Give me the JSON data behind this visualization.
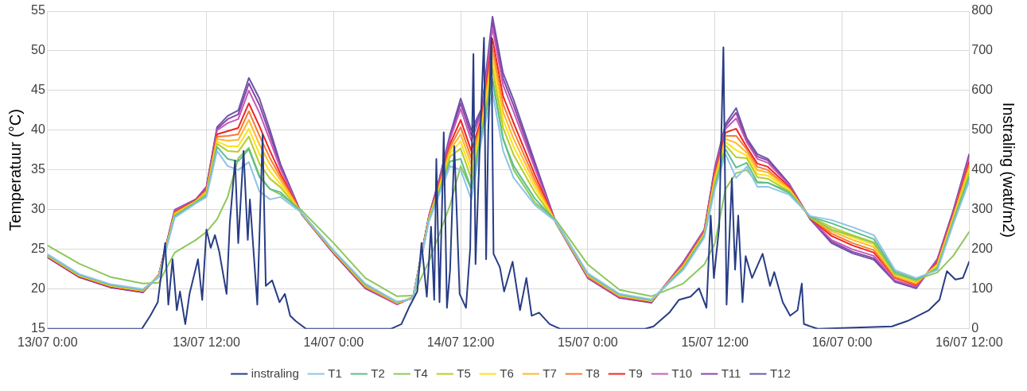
{
  "chart_data": {
    "type": "line",
    "ylabel": "Temperatuur (°C)",
    "y2label": "Instraling (watt/m2)",
    "x": [
      "--07-12T21:00",
      "--07-13T00:00",
      "--07-13T03:00",
      "--07-13T06:00",
      "--07-13T07:30",
      "--07-13T09:00",
      "--07-13T11:00",
      "--07-13T12:00",
      "--07-13T13:00",
      "--07-13T14:00",
      "--07-13T15:00",
      "--07-13T16:00",
      "--07-13T17:00",
      "--07-13T18:00",
      "--07-13T19:00",
      "--07-13T21:00",
      "--07-14T00:00",
      "--07-14T03:00",
      "--07-14T06:00",
      "--07-14T07:30",
      "--07-14T09:00",
      "--07-14T10:00",
      "--07-14T11:00",
      "--07-14T12:00",
      "--07-14T13:00",
      "--07-14T14:00",
      "--07-14T15:00",
      "--07-14T16:00",
      "--07-14T17:00",
      "--07-14T19:00",
      "--07-14T21:00",
      "--07-15T00:00",
      "--07-15T03:00",
      "--07-15T06:00",
      "--07-15T09:00",
      "--07-15T11:00",
      "--07-15T12:00",
      "--07-15T13:00",
      "--07-15T14:00",
      "--07-15T15:00",
      "--07-15T16:00",
      "--07-15T17:00",
      "--07-15T19:00",
      "--07-15T21:00",
      "--07-15T23:00",
      "--07-16T01:00",
      "--07-16T03:00",
      "--07-16T05:00",
      "--07-16T07:00",
      "--07-16T09:00",
      "--07-16T10:30",
      "--07-16T12:00"
    ],
    "xlim": [
      "--07-12T21:00",
      "--07-16T12:00"
    ],
    "xticks": [
      {
        "value": "--07-12T21:00",
        "label": "13/07 0:00"
      },
      {
        "value": "--07-13T12:00",
        "label": "13/07 12:00"
      },
      {
        "value": "--07-14T00:00",
        "label": "14/07 0:00"
      },
      {
        "value": "--07-14T12:00",
        "label": "14/07 12:00"
      },
      {
        "value": "--07-15T00:00",
        "label": "15/07 0:00"
      },
      {
        "value": "--07-15T12:00",
        "label": "15/07 12:00"
      },
      {
        "value": "--07-16T00:00",
        "label": "16/07 0:00"
      },
      {
        "value": "--07-16T12:00",
        "label": "16/07 12:00"
      }
    ],
    "ylim": [
      15,
      55
    ],
    "yticks": [
      15,
      20,
      25,
      30,
      35,
      40,
      45,
      50,
      55
    ],
    "y2lim": [
      0,
      800
    ],
    "y2ticks": [
      0,
      100,
      200,
      300,
      400,
      500,
      600,
      700,
      800
    ],
    "grid": true,
    "legend": "bottom",
    "marker": "none",
    "line_style": "solid",
    "series": [
      {
        "name": "T1",
        "color": "#8dc3e8",
        "values": [
          24.4,
          21.9,
          20.6,
          20.0,
          21.5,
          29.0,
          30.8,
          31.6,
          37.4,
          35.5,
          35.0,
          36.0,
          32.3,
          31.3,
          31.6,
          29.6,
          24.9,
          20.7,
          18.4,
          18.8,
          28.5,
          32.0,
          35.5,
          35.0,
          31.3,
          39.0,
          44.8,
          37.4,
          34.0,
          30.6,
          28.5,
          22.0,
          19.4,
          18.7,
          22.4,
          26.5,
          32.6,
          37.0,
          34.0,
          35.4,
          32.9,
          32.9,
          31.9,
          29.2,
          28.7,
          27.8,
          26.8,
          22.4,
          21.4,
          22.4,
          28.2,
          33.6
        ]
      },
      {
        "name": "T2",
        "color": "#5cbf8a",
        "values": [
          24.3,
          21.8,
          20.5,
          19.9,
          21.5,
          29.2,
          30.9,
          31.8,
          37.9,
          36.4,
          36.1,
          37.6,
          34.1,
          32.6,
          32.2,
          29.6,
          24.8,
          20.6,
          18.4,
          18.8,
          28.6,
          32.3,
          36.1,
          36.4,
          32.6,
          39.6,
          46.2,
          38.9,
          35.5,
          31.4,
          28.5,
          21.9,
          19.3,
          18.6,
          22.6,
          26.7,
          33.0,
          37.6,
          35.3,
          35.9,
          33.5,
          33.4,
          32.1,
          29.1,
          28.3,
          27.3,
          26.3,
          22.2,
          21.2,
          22.6,
          28.5,
          34.1
        ]
      },
      {
        "name": "T4",
        "color": "#8cc85a",
        "values": [
          25.5,
          23.2,
          21.5,
          20.7,
          20.8,
          24.6,
          26.2,
          27.2,
          28.8,
          31.6,
          36.5,
          37.8,
          34.3,
          32.6,
          31.9,
          29.9,
          25.8,
          21.4,
          19.1,
          19.2,
          23.5,
          27.0,
          30.6,
          35.5,
          32.6,
          40.0,
          46.5,
          39.0,
          35.0,
          30.9,
          28.7,
          23.1,
          19.9,
          19.1,
          20.7,
          23.1,
          25.8,
          32.6,
          34.6,
          35.0,
          33.4,
          33.4,
          32.3,
          29.0,
          27.5,
          26.7,
          25.8,
          21.9,
          21.2,
          22.1,
          24.2,
          27.2
        ]
      },
      {
        "name": "T5",
        "color": "#b8cc2c",
        "values": [
          24.3,
          21.8,
          20.5,
          19.9,
          21.6,
          29.3,
          31.0,
          32.0,
          38.3,
          37.4,
          37.3,
          39.2,
          35.8,
          33.9,
          32.8,
          29.5,
          24.8,
          20.5,
          18.3,
          18.9,
          28.7,
          32.6,
          36.7,
          37.7,
          33.9,
          40.1,
          47.7,
          40.3,
          36.9,
          32.2,
          28.4,
          21.8,
          19.3,
          18.6,
          22.7,
          26.8,
          33.4,
          38.1,
          36.6,
          36.5,
          34.1,
          33.9,
          32.3,
          29.1,
          27.8,
          26.8,
          25.9,
          22.0,
          21.0,
          22.8,
          28.7,
          34.6
        ]
      },
      {
        "name": "T6",
        "color": "#ffe11a",
        "values": [
          24.2,
          21.7,
          20.4,
          19.8,
          21.6,
          29.4,
          31.0,
          32.1,
          38.6,
          38.0,
          38.0,
          40.2,
          37.0,
          34.8,
          33.2,
          29.5,
          24.7,
          20.5,
          18.3,
          18.9,
          28.8,
          32.8,
          37.1,
          38.6,
          34.8,
          40.5,
          48.6,
          41.3,
          37.9,
          32.8,
          28.4,
          21.8,
          19.2,
          18.5,
          22.8,
          26.9,
          33.7,
          38.5,
          37.5,
          36.8,
          34.5,
          34.3,
          32.5,
          29.0,
          27.5,
          26.5,
          25.6,
          21.8,
          20.9,
          23.0,
          28.9,
          35.0
        ]
      },
      {
        "name": "T7",
        "color": "#ffb72a",
        "values": [
          24.2,
          21.7,
          20.4,
          19.8,
          21.7,
          29.5,
          31.1,
          32.3,
          38.9,
          38.7,
          38.8,
          41.3,
          38.2,
          35.7,
          33.7,
          29.5,
          24.7,
          20.4,
          18.3,
          18.9,
          28.9,
          33.0,
          37.5,
          39.5,
          35.7,
          40.9,
          49.6,
          42.3,
          38.9,
          33.3,
          28.4,
          21.7,
          19.2,
          18.5,
          22.9,
          27.0,
          34.0,
          38.9,
          38.4,
          37.2,
          35.0,
          34.7,
          32.6,
          29.0,
          27.3,
          26.2,
          25.3,
          21.7,
          20.8,
          23.1,
          29.1,
          35.3
        ]
      },
      {
        "name": "T8",
        "color": "#f97a30",
        "values": [
          24.2,
          21.7,
          20.4,
          19.8,
          21.7,
          29.6,
          31.1,
          32.4,
          39.2,
          39.3,
          39.5,
          42.4,
          39.3,
          36.5,
          34.1,
          29.5,
          24.7,
          20.3,
          18.2,
          18.9,
          28.9,
          33.2,
          37.9,
          40.4,
          36.5,
          41.3,
          50.5,
          43.3,
          39.9,
          33.8,
          28.4,
          21.6,
          19.1,
          18.5,
          23.0,
          27.1,
          34.3,
          39.3,
          39.3,
          37.6,
          35.4,
          35.0,
          32.7,
          29.0,
          27.0,
          25.8,
          24.9,
          21.5,
          20.6,
          23.2,
          29.2,
          35.6
        ]
      },
      {
        "name": "T9",
        "color": "#f02424",
        "values": [
          24.1,
          21.6,
          20.3,
          19.7,
          21.7,
          29.7,
          31.2,
          32.5,
          39.5,
          39.9,
          40.3,
          43.4,
          40.5,
          37.4,
          34.5,
          29.5,
          24.6,
          20.3,
          18.2,
          18.9,
          29.0,
          33.4,
          38.3,
          41.3,
          37.4,
          41.7,
          51.5,
          44.3,
          40.9,
          34.4,
          28.4,
          21.6,
          19.1,
          18.4,
          23.1,
          27.2,
          34.6,
          39.7,
          40.2,
          37.9,
          35.8,
          35.4,
          32.9,
          28.9,
          26.7,
          25.5,
          24.6,
          21.4,
          20.5,
          23.4,
          29.4,
          36.0
        ]
      },
      {
        "name": "T10",
        "color": "#c45ab8",
        "values": [
          24.1,
          21.6,
          20.3,
          19.7,
          21.8,
          29.9,
          31.2,
          32.7,
          40.0,
          40.9,
          41.4,
          45.0,
          42.2,
          38.7,
          35.1,
          29.4,
          24.6,
          20.2,
          18.1,
          19.0,
          29.1,
          33.7,
          38.9,
          42.7,
          38.7,
          42.2,
          52.9,
          45.7,
          42.3,
          35.2,
          28.3,
          21.5,
          19.0,
          18.4,
          23.3,
          27.4,
          35.0,
          40.2,
          41.5,
          38.5,
          36.4,
          35.9,
          33.1,
          28.9,
          26.2,
          25.0,
          24.2,
          21.1,
          20.3,
          23.6,
          29.6,
          36.5
        ]
      },
      {
        "name": "T11",
        "color": "#8a45a8",
        "values": [
          24.0,
          21.5,
          20.2,
          19.6,
          21.8,
          29.9,
          31.3,
          32.8,
          40.2,
          41.4,
          42.0,
          45.9,
          43.2,
          39.4,
          35.4,
          29.4,
          24.5,
          20.1,
          18.1,
          19.0,
          29.2,
          33.9,
          39.2,
          43.4,
          39.4,
          42.5,
          53.6,
          46.5,
          43.1,
          35.6,
          28.3,
          21.4,
          18.9,
          18.3,
          23.3,
          27.4,
          35.2,
          40.5,
          42.2,
          38.7,
          36.7,
          36.2,
          33.2,
          28.8,
          26.0,
          24.7,
          23.9,
          21.0,
          20.2,
          23.7,
          29.8,
          36.8
        ]
      },
      {
        "name": "T12",
        "color": "#6a55a8",
        "values": [
          24.0,
          21.5,
          20.2,
          19.6,
          21.8,
          30.0,
          31.3,
          32.9,
          40.4,
          41.8,
          42.5,
          46.6,
          44.0,
          40.0,
          35.7,
          29.4,
          24.5,
          20.1,
          18.1,
          19.0,
          29.2,
          34.0,
          39.5,
          44.0,
          40.0,
          42.8,
          54.3,
          47.2,
          43.8,
          36.0,
          28.3,
          21.4,
          18.9,
          18.3,
          23.4,
          27.5,
          35.4,
          40.8,
          42.8,
          39.0,
          37.0,
          36.4,
          33.3,
          28.8,
          25.8,
          24.5,
          23.7,
          20.9,
          20.1,
          23.8,
          29.9,
          37.0
        ]
      },
      {
        "name": "instraling",
        "color": "#283c84",
        "axis": "y2",
        "x": [
          "--07-12T21:00",
          "--07-13T05:54",
          "--07-13T06:42",
          "--07-13T07:24",
          "--07-13T08:06",
          "--07-13T08:24",
          "--07-13T08:48",
          "--07-13T09:12",
          "--07-13T09:30",
          "--07-13T10:00",
          "--07-13T10:24",
          "--07-13T11:12",
          "--07-13T11:36",
          "--07-13T12:00",
          "--07-13T12:24",
          "--07-13T12:48",
          "--07-13T13:12",
          "--07-13T13:54",
          "--07-13T14:12",
          "--07-13T14:42",
          "--07-13T15:00",
          "--07-13T15:30",
          "--07-13T15:54",
          "--07-13T16:06",
          "--07-13T16:48",
          "--07-13T17:18",
          "--07-13T17:36",
          "--07-13T18:12",
          "--07-13T18:54",
          "--07-13T19:24",
          "--07-13T19:54",
          "--07-13T20:24",
          "--07-13T21:24",
          "--07-14T05:24",
          "--07-14T06:24",
          "--07-14T07:06",
          "--07-14T07:54",
          "--07-14T08:18",
          "--07-14T08:48",
          "--07-14T09:12",
          "--07-14T09:30",
          "--07-14T09:42",
          "--07-14T10:00",
          "--07-14T10:18",
          "--07-14T10:24",
          "--07-14T10:42",
          "--07-14T11:00",
          "--07-14T11:24",
          "--07-14T11:54",
          "--07-14T12:30",
          "--07-14T12:54",
          "--07-14T13:12",
          "--07-14T13:24",
          "--07-14T13:48",
          "--07-14T14:12",
          "--07-14T14:24",
          "--07-14T14:36",
          "--07-14T14:54",
          "--07-14T15:06",
          "--07-14T15:42",
          "--07-14T16:06",
          "--07-14T16:54",
          "--07-14T17:36",
          "--07-14T18:12",
          "--07-14T18:42",
          "--07-14T19:24",
          "--07-14T20:24",
          "--07-14T21:24",
          "--07-15T05:24",
          "--07-15T06:12",
          "--07-15T07:42",
          "--07-15T08:36",
          "--07-15T09:42",
          "--07-15T10:30",
          "--07-15T11:12",
          "--07-15T11:36",
          "--07-15T11:54",
          "--07-15T12:24",
          "--07-15T12:48",
          "--07-15T13:06",
          "--07-15T13:36",
          "--07-15T13:54",
          "--07-15T14:12",
          "--07-15T14:36",
          "--07-15T14:54",
          "--07-15T15:30",
          "--07-15T16:30",
          "--07-15T17:12",
          "--07-15T17:36",
          "--07-15T18:24",
          "--07-15T19:06",
          "--07-15T19:48",
          "--07-15T20:12",
          "--07-15T20:24",
          "--07-15T21:42",
          "--07-16T04:42",
          "--07-16T06:12",
          "--07-16T08:12",
          "--07-16T09:12",
          "--07-16T09:54",
          "--07-16T10:42",
          "--07-16T11:24",
          "--07-16T12:00"
        ],
        "values": [
          0,
          0,
          33,
          67,
          216,
          61,
          175,
          47,
          94,
          12,
          88,
          175,
          73,
          250,
          204,
          236,
          195,
          88,
          265,
          424,
          216,
          448,
          224,
          326,
          61,
          489,
          108,
          122,
          67,
          88,
          33,
          20,
          0,
          0,
          12,
          53,
          94,
          216,
          81,
          257,
          73,
          428,
          67,
          373,
          495,
          53,
          149,
          460,
          88,
          53,
          204,
          692,
          163,
          460,
          733,
          175,
          495,
          733,
          189,
          155,
          94,
          169,
          47,
          128,
          33,
          41,
          12,
          0,
          0,
          6,
          41,
          73,
          81,
          102,
          53,
          285,
          128,
          257,
          709,
          61,
          379,
          149,
          285,
          67,
          183,
          128,
          189,
          108,
          143,
          67,
          33,
          47,
          114,
          12,
          0,
          6,
          20,
          47,
          73,
          145,
          124,
          128,
          169
        ]
      }
    ]
  }
}
